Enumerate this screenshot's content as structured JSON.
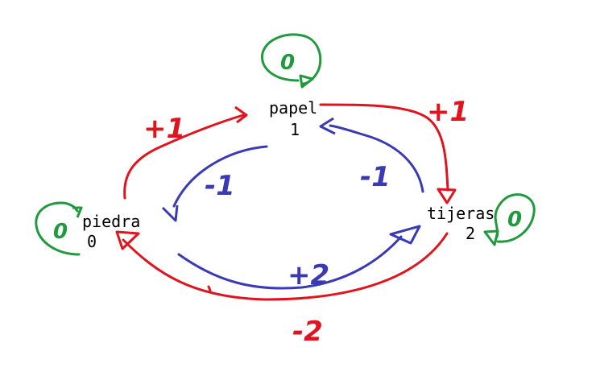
{
  "colors": {
    "forward": "#e0141e",
    "backward": "#3a3ab4",
    "self": "#1f9a3c",
    "text": "#000000"
  },
  "nodes": {
    "papel": {
      "name": "papel",
      "value": "1"
    },
    "piedra": {
      "name": "piedra",
      "value": "0"
    },
    "tijeras": {
      "name": "tijeras",
      "value": "2"
    }
  },
  "edges": {
    "piedra_to_papel": {
      "label": "+1"
    },
    "papel_to_tijeras": {
      "label": "+1"
    },
    "tijeras_to_piedra": {
      "label": "-2"
    },
    "papel_to_piedra": {
      "label": "-1"
    },
    "tijeras_to_papel": {
      "label": "-1"
    },
    "piedra_to_tijeras": {
      "label": "+2"
    }
  },
  "self_loops": {
    "papel": {
      "label": "0"
    },
    "piedra": {
      "label": "0"
    },
    "tijeras": {
      "label": "0"
    }
  }
}
